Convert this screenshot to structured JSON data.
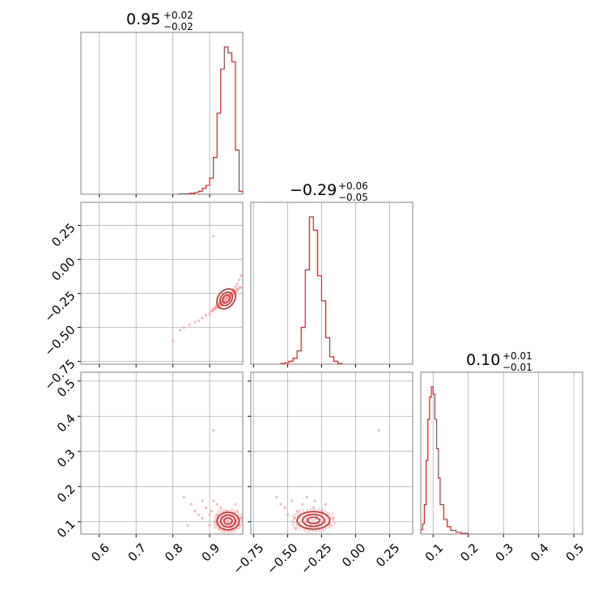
{
  "colors": {
    "series": "#d62728",
    "grid": "#b0b0b0",
    "frame": "#808080",
    "scatter": "#f4a6a6"
  },
  "chart_data": [
    {
      "type": "histogram",
      "panel": "top-left",
      "parameter_index": 0,
      "title": {
        "median": "0.95",
        "upper": "+0.02",
        "lower": "−0.02"
      },
      "xlim": [
        0.55,
        0.99
      ],
      "grid": true,
      "x_gridlines": [
        0.6,
        0.7,
        0.8,
        0.9
      ],
      "bins": [
        {
          "x0": 0.815,
          "x1": 0.83,
          "h": 0.003
        },
        {
          "x0": 0.83,
          "x1": 0.845,
          "h": 0.003
        },
        {
          "x0": 0.845,
          "x1": 0.86,
          "h": 0.006
        },
        {
          "x0": 0.86,
          "x1": 0.87,
          "h": 0.012
        },
        {
          "x0": 0.87,
          "x1": 0.88,
          "h": 0.02
        },
        {
          "x0": 0.88,
          "x1": 0.89,
          "h": 0.04
        },
        {
          "x0": 0.89,
          "x1": 0.9,
          "h": 0.06
        },
        {
          "x0": 0.9,
          "x1": 0.91,
          "h": 0.11
        },
        {
          "x0": 0.91,
          "x1": 0.92,
          "h": 0.25
        },
        {
          "x0": 0.92,
          "x1": 0.93,
          "h": 0.55
        },
        {
          "x0": 0.93,
          "x1": 0.94,
          "h": 0.85
        },
        {
          "x0": 0.94,
          "x1": 0.95,
          "h": 1.0
        },
        {
          "x0": 0.95,
          "x1": 0.96,
          "h": 0.96
        },
        {
          "x0": 0.96,
          "x1": 0.97,
          "h": 0.9
        },
        {
          "x0": 0.97,
          "x1": 0.98,
          "h": 0.3
        },
        {
          "x0": 0.98,
          "x1": 0.99,
          "h": 0.02
        }
      ]
    },
    {
      "type": "histogram",
      "panel": "middle-middle",
      "parameter_index": 1,
      "title": {
        "median": "−0.29",
        "upper": "+0.06",
        "lower": "−0.05"
      },
      "xlim": [
        -0.77,
        0.42
      ],
      "grid": true,
      "x_gridlines": [
        -0.75,
        -0.5,
        -0.25,
        0.0,
        0.25
      ],
      "bins": [
        {
          "x0": -0.55,
          "x1": -0.52,
          "h": 0.005
        },
        {
          "x0": -0.52,
          "x1": -0.49,
          "h": 0.01
        },
        {
          "x0": -0.49,
          "x1": -0.46,
          "h": 0.02
        },
        {
          "x0": -0.46,
          "x1": -0.43,
          "h": 0.04
        },
        {
          "x0": -0.43,
          "x1": -0.4,
          "h": 0.09
        },
        {
          "x0": -0.4,
          "x1": -0.37,
          "h": 0.25
        },
        {
          "x0": -0.37,
          "x1": -0.34,
          "h": 0.64
        },
        {
          "x0": -0.34,
          "x1": -0.31,
          "h": 1.0
        },
        {
          "x0": -0.31,
          "x1": -0.28,
          "h": 0.91
        },
        {
          "x0": -0.28,
          "x1": -0.25,
          "h": 0.6
        },
        {
          "x0": -0.25,
          "x1": -0.22,
          "h": 0.43
        },
        {
          "x0": -0.22,
          "x1": -0.19,
          "h": 0.18
        },
        {
          "x0": -0.19,
          "x1": -0.16,
          "h": 0.05
        },
        {
          "x0": -0.16,
          "x1": -0.13,
          "h": 0.02
        },
        {
          "x0": -0.13,
          "x1": -0.1,
          "h": 0.005
        }
      ]
    },
    {
      "type": "histogram",
      "panel": "bottom-right",
      "parameter_index": 2,
      "title": {
        "median": "0.10",
        "upper": "+0.01",
        "lower": "−0.01"
      },
      "xlim": [
        0.065,
        0.525
      ],
      "grid": true,
      "x_gridlines": [
        0.1,
        0.2,
        0.3,
        0.4,
        0.5
      ],
      "x_ticks": [
        "0.1",
        "0.2",
        "0.3",
        "0.4",
        "0.5"
      ],
      "x_tick_values": [
        0.1,
        0.2,
        0.3,
        0.4,
        0.5
      ],
      "bins": [
        {
          "x0": 0.065,
          "x1": 0.07,
          "h": 0.03
        },
        {
          "x0": 0.07,
          "x1": 0.075,
          "h": 0.07
        },
        {
          "x0": 0.075,
          "x1": 0.08,
          "h": 0.2
        },
        {
          "x0": 0.08,
          "x1": 0.085,
          "h": 0.5
        },
        {
          "x0": 0.085,
          "x1": 0.09,
          "h": 0.78
        },
        {
          "x0": 0.09,
          "x1": 0.095,
          "h": 0.93
        },
        {
          "x0": 0.095,
          "x1": 0.1,
          "h": 1.0
        },
        {
          "x0": 0.1,
          "x1": 0.105,
          "h": 0.95
        },
        {
          "x0": 0.105,
          "x1": 0.11,
          "h": 0.78
        },
        {
          "x0": 0.11,
          "x1": 0.115,
          "h": 0.58
        },
        {
          "x0": 0.115,
          "x1": 0.12,
          "h": 0.38
        },
        {
          "x0": 0.12,
          "x1": 0.13,
          "h": 0.2
        },
        {
          "x0": 0.13,
          "x1": 0.14,
          "h": 0.1
        },
        {
          "x0": 0.14,
          "x1": 0.15,
          "h": 0.05
        },
        {
          "x0": 0.15,
          "x1": 0.165,
          "h": 0.025
        },
        {
          "x0": 0.165,
          "x1": 0.18,
          "h": 0.012
        },
        {
          "x0": 0.18,
          "x1": 0.2,
          "h": 0.005
        }
      ]
    },
    {
      "type": "scatter",
      "panel": "middle-left",
      "x_param": 0,
      "y_param": 1,
      "xlim": [
        0.55,
        0.99
      ],
      "ylim": [
        -0.77,
        0.42
      ],
      "grid": true,
      "x_gridlines": [
        0.6,
        0.7,
        0.8,
        0.9
      ],
      "y_gridlines": [
        -0.75,
        -0.5,
        -0.25,
        0.0,
        0.25
      ],
      "y_ticks": [
        "−0.75",
        "−0.50",
        "−0.25",
        "0.00",
        "0.25"
      ],
      "y_tick_values": [
        -0.75,
        -0.5,
        -0.25,
        0.0,
        0.25
      ],
      "points": [
        [
          0.82,
          -0.52
        ],
        [
          0.83,
          -0.5
        ],
        [
          0.845,
          -0.48
        ],
        [
          0.86,
          -0.46
        ],
        [
          0.87,
          -0.45
        ],
        [
          0.88,
          -0.43
        ],
        [
          0.89,
          -0.41
        ],
        [
          0.9,
          -0.4
        ],
        [
          0.905,
          -0.38
        ],
        [
          0.91,
          -0.37
        ],
        [
          0.915,
          -0.36
        ],
        [
          0.92,
          -0.35
        ],
        [
          0.925,
          -0.33
        ],
        [
          0.93,
          -0.32
        ],
        [
          0.935,
          -0.31
        ],
        [
          0.94,
          -0.3
        ],
        [
          0.945,
          -0.28
        ],
        [
          0.95,
          -0.27
        ],
        [
          0.955,
          -0.25
        ],
        [
          0.96,
          -0.24
        ],
        [
          0.965,
          -0.22
        ],
        [
          0.97,
          -0.2
        ],
        [
          0.975,
          -0.18
        ],
        [
          0.98,
          -0.15
        ],
        [
          0.985,
          -0.12
        ],
        [
          0.93,
          -0.34
        ],
        [
          0.94,
          -0.32
        ],
        [
          0.95,
          -0.29
        ],
        [
          0.96,
          -0.26
        ],
        [
          0.945,
          -0.31
        ],
        [
          0.955,
          -0.28
        ],
        [
          0.935,
          -0.33
        ],
        [
          0.965,
          -0.25
        ],
        [
          0.97,
          -0.23
        ],
        [
          0.925,
          -0.35
        ],
        [
          0.91,
          0.17
        ],
        [
          0.8,
          -0.6
        ]
      ],
      "contours": [
        {
          "cx": 0.945,
          "cy": -0.29,
          "rx": 0.03,
          "ry": 0.06
        },
        {
          "cx": 0.945,
          "cy": -0.29,
          "rx": 0.02,
          "ry": 0.04
        },
        {
          "cx": 0.945,
          "cy": -0.29,
          "rx": 0.012,
          "ry": 0.024
        }
      ]
    },
    {
      "type": "scatter",
      "panel": "bottom-left",
      "x_param": 0,
      "y_param": 2,
      "xlim": [
        0.55,
        0.99
      ],
      "ylim": [
        0.065,
        0.525
      ],
      "grid": true,
      "x_gridlines": [
        0.6,
        0.7,
        0.8,
        0.9
      ],
      "y_gridlines": [
        0.1,
        0.2,
        0.3,
        0.4,
        0.5
      ],
      "x_ticks": [
        "0.6",
        "0.7",
        "0.8",
        "0.9"
      ],
      "x_tick_values": [
        0.6,
        0.7,
        0.8,
        0.9
      ],
      "y_ticks": [
        "0.1",
        "0.2",
        "0.3",
        "0.4",
        "0.5"
      ],
      "y_tick_values": [
        0.1,
        0.2,
        0.3,
        0.4,
        0.5
      ],
      "points": [
        [
          0.83,
          0.17
        ],
        [
          0.85,
          0.15
        ],
        [
          0.86,
          0.13
        ],
        [
          0.87,
          0.12
        ],
        [
          0.88,
          0.11
        ],
        [
          0.89,
          0.14
        ],
        [
          0.9,
          0.09
        ],
        [
          0.905,
          0.13
        ],
        [
          0.91,
          0.16
        ],
        [
          0.915,
          0.1
        ],
        [
          0.92,
          0.12
        ],
        [
          0.925,
          0.08
        ],
        [
          0.93,
          0.14
        ],
        [
          0.935,
          0.11
        ],
        [
          0.94,
          0.09
        ],
        [
          0.945,
          0.13
        ],
        [
          0.95,
          0.1
        ],
        [
          0.955,
          0.12
        ],
        [
          0.96,
          0.085
        ],
        [
          0.965,
          0.115
        ],
        [
          0.97,
          0.1
        ],
        [
          0.975,
          0.13
        ],
        [
          0.98,
          0.09
        ],
        [
          0.985,
          0.11
        ],
        [
          0.92,
          0.15
        ],
        [
          0.9,
          0.12
        ],
        [
          0.91,
          0.36
        ],
        [
          0.84,
          0.09
        ],
        [
          0.88,
          0.16
        ],
        [
          0.97,
          0.15
        ]
      ],
      "contours": [
        {
          "cx": 0.95,
          "cy": 0.102,
          "rx": 0.03,
          "ry": 0.025
        },
        {
          "cx": 0.95,
          "cy": 0.102,
          "rx": 0.02,
          "ry": 0.017
        },
        {
          "cx": 0.95,
          "cy": 0.102,
          "rx": 0.011,
          "ry": 0.009
        }
      ]
    },
    {
      "type": "scatter",
      "panel": "bottom-middle",
      "x_param": 1,
      "y_param": 2,
      "xlim": [
        -0.77,
        0.42
      ],
      "ylim": [
        0.065,
        0.525
      ],
      "grid": true,
      "x_gridlines": [
        -0.75,
        -0.5,
        -0.25,
        0.0,
        0.25
      ],
      "y_gridlines": [
        0.1,
        0.2,
        0.3,
        0.4,
        0.5
      ],
      "x_ticks": [
        "−0.75",
        "−0.50",
        "−0.25",
        "0.00",
        "0.25"
      ],
      "x_tick_values": [
        -0.75,
        -0.5,
        -0.25,
        0.0,
        0.25
      ],
      "points": [
        [
          -0.58,
          0.17
        ],
        [
          -0.55,
          0.15
        ],
        [
          -0.52,
          0.14
        ],
        [
          -0.5,
          0.12
        ],
        [
          -0.47,
          0.16
        ],
        [
          -0.45,
          0.11
        ],
        [
          -0.43,
          0.13
        ],
        [
          -0.41,
          0.09
        ],
        [
          -0.39,
          0.15
        ],
        [
          -0.37,
          0.1
        ],
        [
          -0.35,
          0.12
        ],
        [
          -0.33,
          0.085
        ],
        [
          -0.31,
          0.14
        ],
        [
          -0.29,
          0.11
        ],
        [
          -0.27,
          0.095
        ],
        [
          -0.25,
          0.13
        ],
        [
          -0.23,
          0.1
        ],
        [
          -0.21,
          0.12
        ],
        [
          -0.19,
          0.09
        ],
        [
          -0.17,
          0.11
        ],
        [
          -0.44,
          0.08
        ],
        [
          -0.3,
          0.16
        ],
        [
          -0.22,
          0.15
        ],
        [
          0.17,
          0.36
        ],
        [
          -0.36,
          0.17
        ]
      ],
      "contours": [
        {
          "cx": -0.31,
          "cy": 0.104,
          "rx": 0.12,
          "ry": 0.025
        },
        {
          "cx": -0.31,
          "cy": 0.104,
          "rx": 0.08,
          "ry": 0.017
        },
        {
          "cx": -0.31,
          "cy": 0.104,
          "rx": 0.045,
          "ry": 0.009
        }
      ]
    }
  ]
}
